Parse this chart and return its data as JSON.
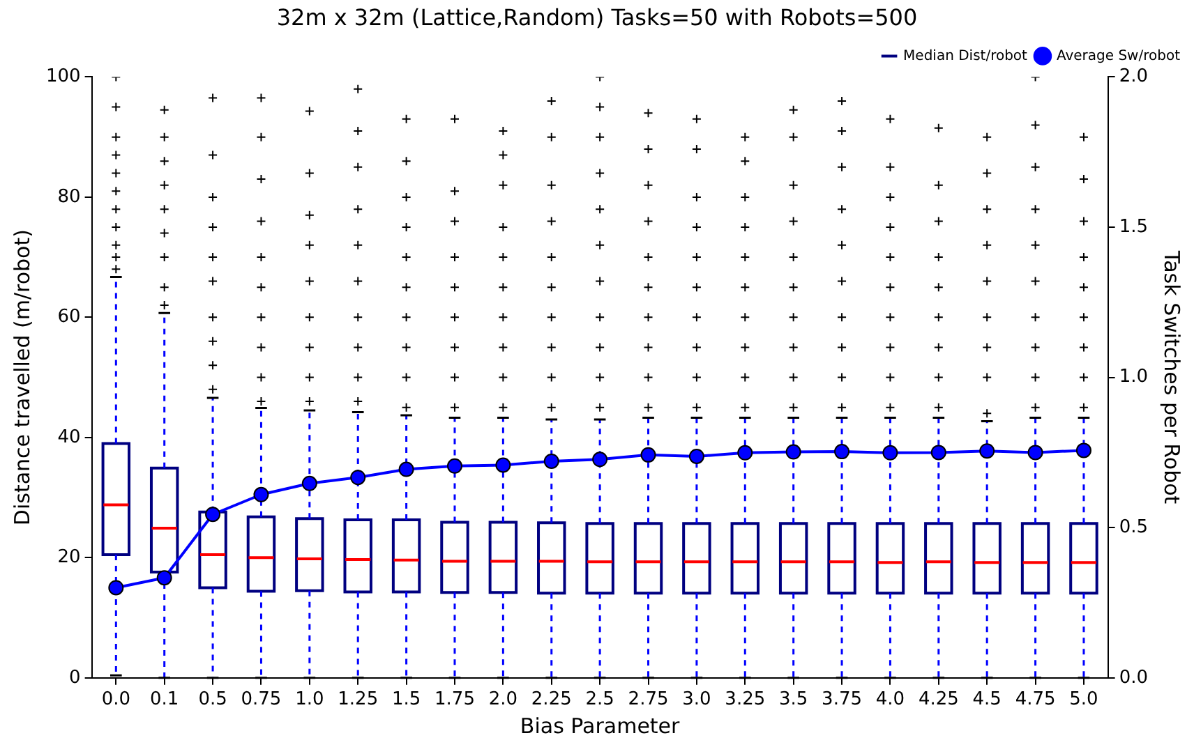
{
  "chart_data": {
    "type": "box",
    "title": "32m x 32m (Lattice,Random) Tasks=50 with Robots=500",
    "xlabel": "Bias Parameter",
    "ylabel": "Distance travelled (m/robot)",
    "y2label": "Task Switches per Robot",
    "categories": [
      "0.0",
      "0.1",
      "0.5",
      "0.75",
      "1.0",
      "1.25",
      "1.5",
      "1.75",
      "2.0",
      "2.25",
      "2.5",
      "2.75",
      "3.0",
      "3.25",
      "3.5",
      "3.75",
      "4.0",
      "4.25",
      "4.5",
      "4.75",
      "5.0"
    ],
    "ylim": [
      0,
      100
    ],
    "yticks": [
      0,
      20,
      40,
      60,
      80,
      100
    ],
    "y2lim": [
      0,
      2
    ],
    "y2ticks": [
      {
        "value": 0,
        "label": "0.0"
      },
      {
        "value": 0.5,
        "label": "0.5"
      },
      {
        "value": 1,
        "label": "1.0"
      },
      {
        "value": 1.5,
        "label": "1.5"
      },
      {
        "value": 2,
        "label": "2.0"
      }
    ],
    "grid": false,
    "legend": "top right",
    "series": [
      {
        "name": "Median Dist/robot",
        "type": "box",
        "color": "#000080",
        "boxes": [
          {
            "low": 0.4,
            "q1": 20.5,
            "median": 28.8,
            "q3": 39.0,
            "high": 66.7,
            "outliers": [
              68,
              70,
              72,
              75,
              78,
              81,
              84,
              87,
              90,
              95,
              100
            ]
          },
          {
            "low": 0,
            "q1": 17.6,
            "median": 24.9,
            "q3": 34.9,
            "high": 60.7,
            "outliers": [
              62,
              65,
              70,
              74,
              78,
              82,
              86,
              90,
              94.5
            ]
          },
          {
            "low": 0,
            "q1": 15.0,
            "median": 20.5,
            "q3": 27.6,
            "high": 46.6,
            "outliers": [
              48,
              52,
              56,
              60,
              66,
              70,
              75,
              80,
              87,
              96.5
            ]
          },
          {
            "low": 0,
            "q1": 14.4,
            "median": 20.0,
            "q3": 26.8,
            "high": 44.9,
            "outliers": [
              46,
              50,
              55,
              60,
              65,
              70,
              76,
              83,
              90,
              96.5
            ]
          },
          {
            "low": 0,
            "q1": 14.5,
            "median": 19.8,
            "q3": 26.5,
            "high": 44.5,
            "outliers": [
              46,
              50,
              55,
              60,
              66,
              72,
              77,
              84,
              94.3
            ]
          },
          {
            "low": 0,
            "q1": 14.3,
            "median": 19.7,
            "q3": 26.3,
            "high": 44.2,
            "outliers": [
              46,
              50,
              55,
              60,
              66,
              72,
              78,
              85,
              91,
              98
            ]
          },
          {
            "low": 0,
            "q1": 14.3,
            "median": 19.6,
            "q3": 26.3,
            "high": 43.7,
            "outliers": [
              45,
              50,
              55,
              60,
              65,
              70,
              75,
              80,
              86,
              93
            ]
          },
          {
            "low": 0,
            "q1": 14.2,
            "median": 19.4,
            "q3": 25.9,
            "high": 43.3,
            "outliers": [
              45,
              50,
              55,
              60,
              65,
              70,
              76,
              81,
              93
            ]
          },
          {
            "low": 0,
            "q1": 14.2,
            "median": 19.4,
            "q3": 25.9,
            "high": 43.3,
            "outliers": [
              45,
              50,
              55,
              60,
              65,
              70,
              75,
              82,
              87,
              91
            ]
          },
          {
            "low": 0,
            "q1": 14.1,
            "median": 19.4,
            "q3": 25.8,
            "high": 43.0,
            "outliers": [
              45,
              50,
              55,
              60,
              65,
              70,
              76,
              82,
              90,
              96
            ]
          },
          {
            "low": 0,
            "q1": 14.1,
            "median": 19.3,
            "q3": 25.7,
            "high": 43.0,
            "outliers": [
              45,
              50,
              55,
              60,
              66,
              72,
              78,
              84,
              90,
              95,
              100
            ]
          },
          {
            "low": 0,
            "q1": 14.1,
            "median": 19.3,
            "q3": 25.7,
            "high": 43.3,
            "outliers": [
              45,
              50,
              55,
              60,
              65,
              70,
              76,
              82,
              88,
              94
            ]
          },
          {
            "low": 0,
            "q1": 14.1,
            "median": 19.3,
            "q3": 25.7,
            "high": 43.3,
            "outliers": [
              45,
              50,
              55,
              60,
              65,
              70,
              75,
              80,
              88,
              93
            ]
          },
          {
            "low": 0,
            "q1": 14.1,
            "median": 19.3,
            "q3": 25.7,
            "high": 43.3,
            "outliers": [
              45,
              50,
              55,
              60,
              65,
              70,
              75,
              80,
              86,
              90
            ]
          },
          {
            "low": 0,
            "q1": 14.1,
            "median": 19.3,
            "q3": 25.7,
            "high": 43.3,
            "outliers": [
              45,
              50,
              55,
              60,
              65,
              70,
              76,
              82,
              90,
              94.5
            ]
          },
          {
            "low": 0,
            "q1": 14.1,
            "median": 19.3,
            "q3": 25.7,
            "high": 43.3,
            "outliers": [
              45,
              50,
              55,
              60,
              66,
              72,
              78,
              85,
              91,
              96
            ]
          },
          {
            "low": 0,
            "q1": 14.1,
            "median": 19.2,
            "q3": 25.7,
            "high": 43.3,
            "outliers": [
              45,
              50,
              55,
              60,
              65,
              70,
              75,
              80,
              85,
              93
            ]
          },
          {
            "low": 0,
            "q1": 14.1,
            "median": 19.3,
            "q3": 25.7,
            "high": 43.3,
            "outliers": [
              45,
              50,
              55,
              60,
              65,
              70,
              76,
              82,
              91.5
            ]
          },
          {
            "low": 0,
            "q1": 14.1,
            "median": 19.2,
            "q3": 25.7,
            "high": 42.7,
            "outliers": [
              44,
              50,
              55,
              60,
              66,
              72,
              78,
              84,
              90
            ]
          },
          {
            "low": 0,
            "q1": 14.1,
            "median": 19.2,
            "q3": 25.7,
            "high": 43.3,
            "outliers": [
              45,
              50,
              55,
              60,
              66,
              72,
              78,
              85,
              92,
              100
            ]
          },
          {
            "low": 0,
            "q1": 14.1,
            "median": 19.2,
            "q3": 25.7,
            "high": 43.3,
            "outliers": [
              45,
              50,
              55,
              60,
              65,
              70,
              76,
              83,
              90
            ]
          }
        ]
      },
      {
        "name": "Average Sw/robot",
        "type": "line",
        "axis": "y2",
        "color": "#0000ff",
        "marker": "circle",
        "values": [
          0.3,
          0.333,
          0.544,
          0.61,
          0.647,
          0.667,
          0.694,
          0.705,
          0.708,
          0.721,
          0.727,
          0.742,
          0.737,
          0.749,
          0.752,
          0.753,
          0.749,
          0.75,
          0.755,
          0.75,
          0.757
        ]
      }
    ]
  }
}
